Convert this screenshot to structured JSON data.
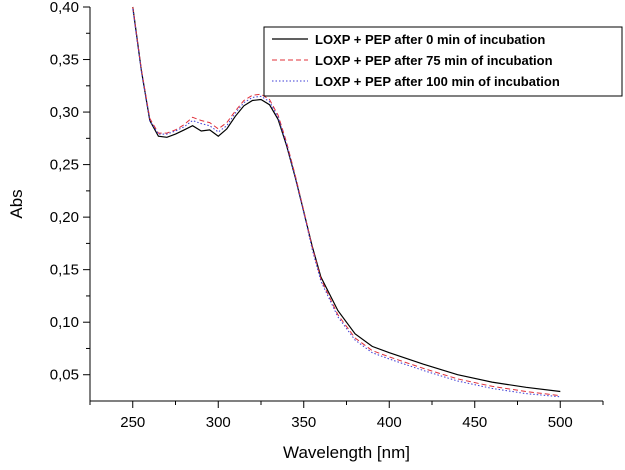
{
  "chart_data": {
    "type": "line",
    "title": "",
    "xlabel": "Wavelength [nm]",
    "ylabel": "Abs",
    "xlim": [
      225,
      525
    ],
    "ylim": [
      0.025,
      0.4
    ],
    "x_ticks": [
      250,
      300,
      350,
      400,
      450,
      500
    ],
    "x_tick_labels": [
      "250",
      "300",
      "350",
      "400",
      "450",
      "500"
    ],
    "y_ticks": [
      0.05,
      0.1,
      0.15,
      0.2,
      0.25,
      0.3,
      0.35,
      0.4
    ],
    "y_tick_labels": [
      "0,05",
      "0,10",
      "0,15",
      "0,20",
      "0,25",
      "0,30",
      "0,35",
      "0,40"
    ],
    "grid": false,
    "legend_position": "top-right",
    "series": [
      {
        "name": "LOXP + PEP after 0 min of incubation",
        "color": "#000000",
        "style": "solid",
        "x": [
          250,
          255,
          260,
          265,
          270,
          275,
          280,
          285,
          290,
          295,
          300,
          305,
          310,
          315,
          320,
          325,
          330,
          335,
          340,
          345,
          350,
          355,
          360,
          370,
          380,
          390,
          400,
          420,
          440,
          460,
          480,
          500
        ],
        "y": [
          0.4,
          0.34,
          0.292,
          0.277,
          0.276,
          0.279,
          0.283,
          0.287,
          0.282,
          0.283,
          0.277,
          0.284,
          0.296,
          0.306,
          0.311,
          0.312,
          0.307,
          0.293,
          0.268,
          0.238,
          0.205,
          0.172,
          0.143,
          0.111,
          0.089,
          0.077,
          0.071,
          0.06,
          0.05,
          0.043,
          0.038,
          0.034
        ]
      },
      {
        "name": "LOXP + PEP after 75 min of incubation",
        "color": "#e0303a",
        "style": "dashed",
        "x": [
          250,
          255,
          260,
          265,
          270,
          275,
          280,
          285,
          290,
          295,
          300,
          305,
          310,
          315,
          320,
          325,
          330,
          335,
          340,
          345,
          350,
          355,
          360,
          370,
          380,
          390,
          400,
          420,
          440,
          460,
          480,
          500
        ],
        "y": [
          0.4,
          0.341,
          0.294,
          0.28,
          0.28,
          0.283,
          0.288,
          0.295,
          0.292,
          0.29,
          0.284,
          0.29,
          0.301,
          0.311,
          0.316,
          0.317,
          0.312,
          0.297,
          0.271,
          0.24,
          0.206,
          0.171,
          0.141,
          0.107,
          0.085,
          0.073,
          0.067,
          0.056,
          0.046,
          0.039,
          0.034,
          0.03
        ]
      },
      {
        "name": "LOXP + PEP after 100 min of incubation",
        "color": "#3b3bd6",
        "style": "dotted",
        "x": [
          250,
          255,
          260,
          265,
          270,
          275,
          280,
          285,
          290,
          295,
          300,
          305,
          310,
          315,
          320,
          325,
          330,
          335,
          340,
          345,
          350,
          355,
          360,
          370,
          380,
          390,
          400,
          420,
          440,
          460,
          480,
          500
        ],
        "y": [
          0.398,
          0.339,
          0.292,
          0.279,
          0.279,
          0.282,
          0.286,
          0.292,
          0.289,
          0.287,
          0.281,
          0.287,
          0.299,
          0.309,
          0.314,
          0.315,
          0.31,
          0.295,
          0.269,
          0.238,
          0.204,
          0.169,
          0.139,
          0.105,
          0.083,
          0.071,
          0.065,
          0.054,
          0.044,
          0.037,
          0.032,
          0.029
        ]
      }
    ]
  }
}
